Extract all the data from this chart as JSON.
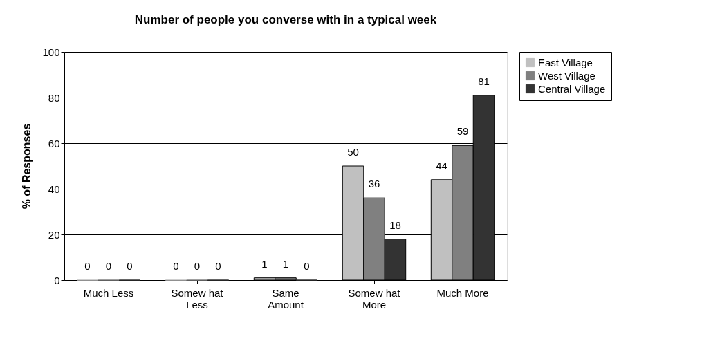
{
  "chart_data": {
    "type": "bar",
    "title": "Number of people you converse with in a typical week",
    "ylabel": "% of Responses",
    "categories": [
      "Much Less",
      "Somew hat Less",
      "Same Amount",
      "Somew hat More",
      "Much More"
    ],
    "series": [
      {
        "name": "East Village",
        "color": "#c0c0c0",
        "values": [
          0,
          0,
          1,
          50,
          44
        ]
      },
      {
        "name": "West Village",
        "color": "#808080",
        "values": [
          0,
          0,
          1,
          36,
          59
        ]
      },
      {
        "name": "Central Village",
        "color": "#333333",
        "values": [
          0,
          0,
          0,
          18,
          81
        ]
      }
    ],
    "ylim": [
      0,
      100
    ],
    "yticks": [
      0,
      20,
      40,
      60,
      80,
      100
    ],
    "grid": "y",
    "legend": "right",
    "data_labels": true
  }
}
